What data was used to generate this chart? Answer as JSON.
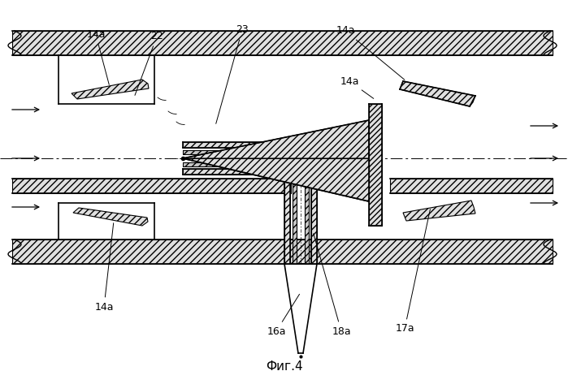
{
  "title": "Фиг.4",
  "bg_color": "#ffffff",
  "line_color": "#000000",
  "lw_main": 1.2,
  "lw_thin": 0.7,
  "hatch_density": "////",
  "labels": {
    "14a_1": "14а",
    "22": "22",
    "23": "23",
    "14a_2": "14а",
    "14a_3": "14а",
    "14a_4": "14а",
    "16a": "16а",
    "18a": "18а",
    "17a": "17а"
  }
}
